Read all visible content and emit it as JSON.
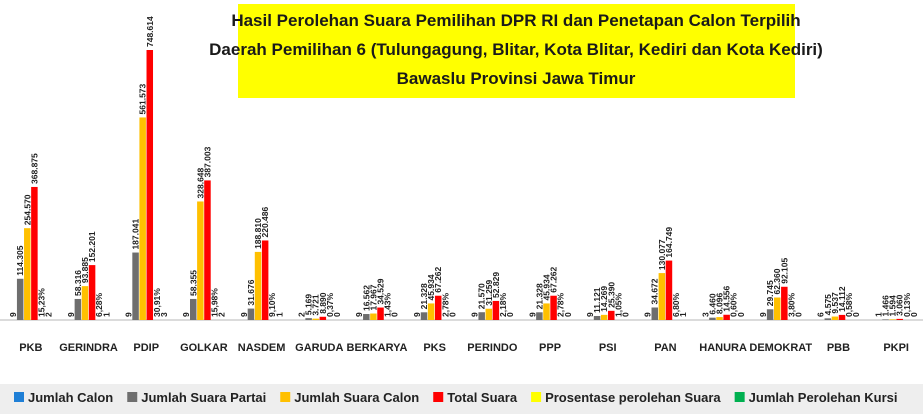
{
  "chart_data": {
    "type": "bar",
    "title": [
      "Hasil Perolehan Suara Pemilihan DPR RI dan Penetapan Calon Terpilih",
      "Daerah Pemilihan 6 (Tulungagung, Blitar, Kota Blitar, Kediri dan Kota Kediri)",
      "Bawaslu Provinsi Jawa Timur"
    ],
    "categories": [
      "PKB",
      "GERINDRA",
      "PDIP",
      "GOLKAR",
      "NASDEM",
      "GARUDA",
      "BERKARYA",
      "PKS",
      "PERINDO",
      "PPP",
      "PSI",
      "PAN",
      "HANURA",
      "DEMOKRAT",
      "PBB",
      "PKPI"
    ],
    "series": [
      {
        "name": "Jumlah Calon",
        "color": "#1f7fd6",
        "values": [
          9,
          9,
          9,
          9,
          9,
          2,
          9,
          9,
          9,
          9,
          9,
          9,
          3,
          9,
          6,
          1
        ]
      },
      {
        "name": "Jumlah Suara Partai",
        "color": "#6e6e6e",
        "values": [
          114305,
          58316,
          187041,
          58355,
          31676,
          5169,
          16562,
          21328,
          21570,
          21328,
          11121,
          34672,
          6460,
          29745,
          4575,
          1466
        ],
        "value_labels": [
          "114.305",
          "58.316",
          "187.041",
          "58.355",
          "31.676",
          "5.169",
          "16.562",
          "21.328",
          "21.570",
          "21.328",
          "11.121",
          "34.672",
          "6.460",
          "29.745",
          "4.575",
          "1.466"
        ]
      },
      {
        "name": "Jumlah Suara Calon",
        "color": "#ffc000",
        "values": [
          254570,
          93885,
          561573,
          328648,
          188810,
          3721,
          17967,
          45934,
          31259,
          45934,
          14269,
          130077,
          8096,
          62360,
          9537,
          1594
        ],
        "value_labels": [
          "254.570",
          "93.885",
          "561.573",
          "328.648",
          "188.810",
          "3.721",
          "17.967",
          "45.934",
          "31.259",
          "45.934",
          "14.269",
          "130.077",
          "8.096",
          "62.360",
          "9.537",
          "1.594"
        ]
      },
      {
        "name": "Total Suara",
        "color": "#ff0000",
        "values": [
          368875,
          152201,
          748614,
          387003,
          220486,
          8890,
          34529,
          67262,
          52829,
          67262,
          25390,
          164749,
          14556,
          92105,
          14112,
          3060
        ],
        "value_labels": [
          "368.875",
          "152.201",
          "748.614",
          "387.003",
          "220.486",
          "8.890",
          "34.529",
          "67.262",
          "52.829",
          "67.262",
          "25.390",
          "164.749",
          "14.556",
          "92.105",
          "14.112",
          "3.060"
        ]
      },
      {
        "name": "Prosentase perolehan Suara",
        "color": "#ffff00",
        "values": [
          15.23,
          6.28,
          30.91,
          15.98,
          9.1,
          0.37,
          1.43,
          2.78,
          2.18,
          2.78,
          1.05,
          6.8,
          0.6,
          3.8,
          0.58,
          0.13
        ],
        "value_labels": [
          "15,23%",
          "6,28%",
          "30,91%",
          "15,98%",
          "9,10%",
          "0,37%",
          "1,43%",
          "2,78%",
          "2,18%",
          "2,78%",
          "1,05%",
          "6,80%",
          "0,60%",
          "3,80%",
          "0,58%",
          "0,13%"
        ]
      },
      {
        "name": "Jumlah Perolehan Kursi",
        "color": "#00b050",
        "values": [
          2,
          1,
          3,
          2,
          1,
          0,
          0,
          0,
          0,
          0,
          0,
          1,
          0,
          0,
          0,
          0
        ]
      }
    ]
  }
}
